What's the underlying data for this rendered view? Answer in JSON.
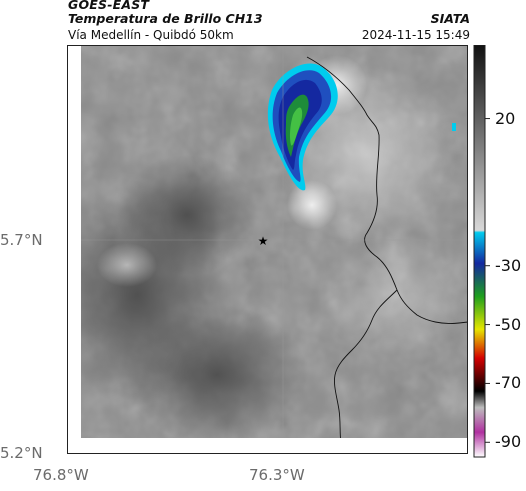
{
  "header": {
    "satellite": "GOES-EAST",
    "product": "Temperatura de Brillo CH13",
    "region": "Vía Medellín - Quibdó 50km",
    "brand": "SIATA",
    "datetime": "2024-11-15 15:49"
  },
  "map": {
    "lat_ticks": [
      "5.7°N",
      "5.2°N"
    ],
    "lon_ticks": [
      "76.8°W",
      "76.3°W"
    ],
    "marker_icon": "star-icon",
    "gridlines": true
  },
  "colorbar": {
    "tick_labels": [
      "20",
      "-30",
      "-50",
      "-70",
      "-90"
    ],
    "ticks": [
      20,
      -30,
      -50,
      -70,
      -90
    ],
    "range": [
      -95,
      45
    ],
    "colors": {
      "warm_gray_top": "#111111",
      "gray_mid": "#d8d8d8",
      "cyan": "#00ccee",
      "blue": "#1428a0",
      "green": "#1ea01e",
      "yellow": "#e6e600",
      "red": "#d40000",
      "black": "#000000",
      "magenta": "#b030a0"
    }
  }
}
